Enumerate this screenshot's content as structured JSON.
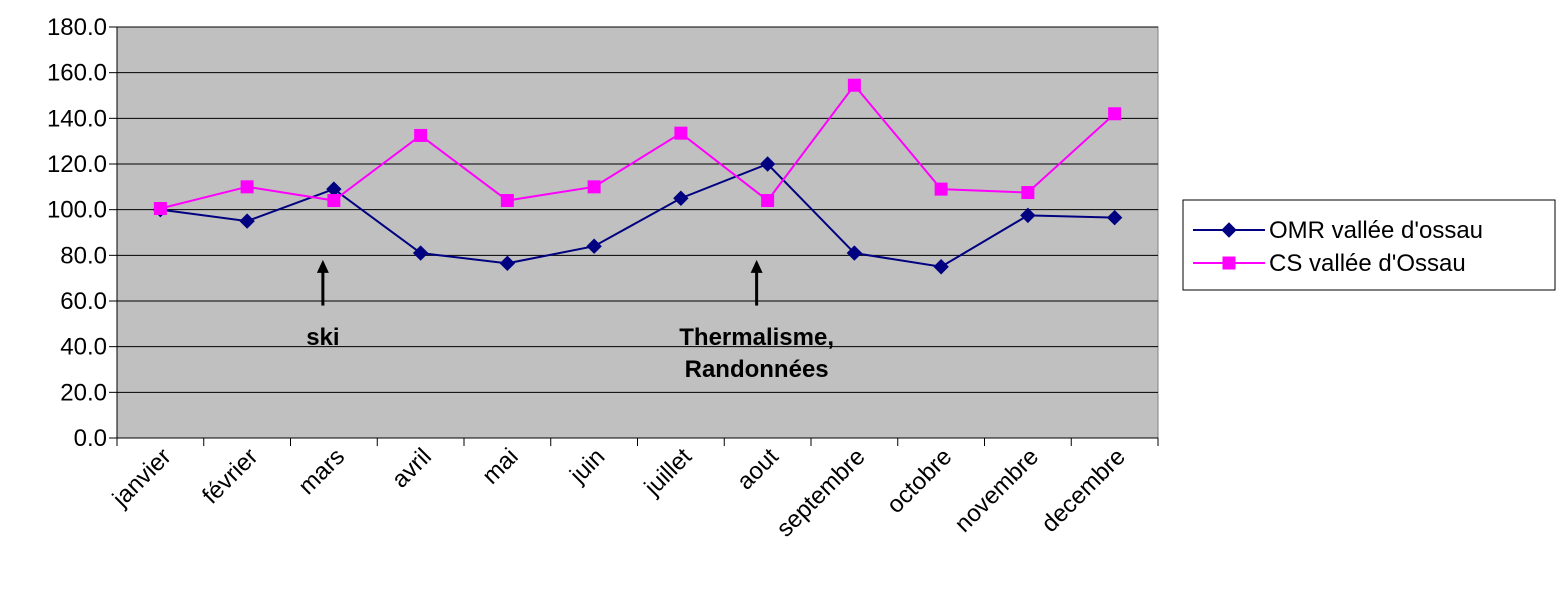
{
  "chart_data": {
    "type": "line",
    "categories": [
      "janvier",
      "février",
      "mars",
      "avril",
      "mai",
      "juin",
      "juillet",
      "aout",
      "septembre",
      "octobre",
      "novembre",
      "decembre"
    ],
    "series": [
      {
        "name": "OMR vallée d'ossau",
        "color": "#000080",
        "marker": "diamond",
        "values": [
          100.0,
          95.0,
          109.0,
          81.0,
          76.5,
          84.0,
          105.0,
          120.0,
          81.0,
          75.0,
          97.5,
          96.5
        ]
      },
      {
        "name": "CS vallée d'Ossau",
        "color": "#ff00ff",
        "marker": "square",
        "values": [
          100.5,
          110.0,
          104.0,
          132.5,
          104.0,
          110.0,
          133.5,
          104.0,
          154.5,
          109.0,
          107.5,
          142.0
        ]
      }
    ],
    "ylim": [
      0,
      180
    ],
    "yticks": [
      "0.0",
      "20.0",
      "40.0",
      "60.0",
      "80.0",
      "100.0",
      "120.0",
      "140.0",
      "160.0",
      "180.0"
    ],
    "grid": true,
    "plot_background": "#c0c0c0",
    "legend_position": "right",
    "annotations": [
      {
        "text_lines": [
          "ski"
        ],
        "category": "mars",
        "arrow_from": 58,
        "arrow_to": 78
      },
      {
        "text_lines": [
          "Thermalisme,",
          "Randonnées"
        ],
        "category": "aout",
        "arrow_from": 58,
        "arrow_to": 78
      }
    ]
  }
}
